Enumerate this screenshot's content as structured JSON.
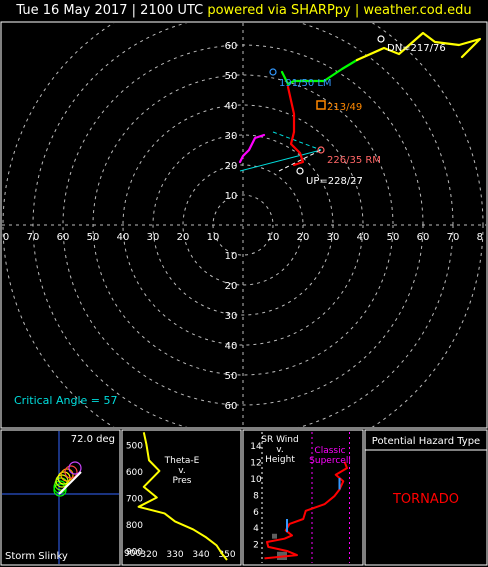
{
  "header": {
    "date_text": "Tue 16 May 2017 | 2100 UTC",
    "credit_text": "powered via SHARPpy | weather.cod.edu"
  },
  "chart_data": [
    {
      "type": "line",
      "panel": "hodograph",
      "ring_labels_up": [
        "10",
        "20",
        "30",
        "40",
        "50",
        "60"
      ],
      "ring_labels_down": [
        "10",
        "20",
        "30",
        "40",
        "50",
        "60"
      ],
      "x_labels_left": [
        "0",
        "70",
        "60",
        "50",
        "40",
        "30",
        "20",
        "10"
      ],
      "x_labels_right": [
        "10",
        "20",
        "30",
        "40",
        "50",
        "60",
        "70",
        "8"
      ],
      "series": [
        {
          "color": "#ff00ff",
          "points": [
            [
              7,
              30
            ],
            [
              4,
              29
            ],
            [
              2,
              25
            ],
            [
              0,
              23
            ],
            [
              -1,
              21
            ]
          ]
        },
        {
          "color": "#ff0000",
          "points": [
            [
              17,
              31
            ],
            [
              16,
              27
            ],
            [
              19,
              24
            ],
            [
              20,
              21
            ],
            [
              17,
              20
            ]
          ]
        },
        {
          "color": "#ff0000",
          "points": [
            [
              15,
              46
            ],
            [
              17,
              37
            ],
            [
              17,
              31
            ]
          ]
        },
        {
          "color": "#00ff00",
          "points": [
            [
              13,
              51
            ],
            [
              15,
              47
            ],
            [
              17,
              48
            ],
            [
              27,
              48
            ],
            [
              33,
              52
            ],
            [
              38,
              55
            ]
          ]
        },
        {
          "color": "#ffff00",
          "points": [
            [
              38,
              55
            ],
            [
              47,
              59
            ],
            [
              52,
              57
            ],
            [
              60,
              64
            ],
            [
              64,
              61
            ],
            [
              72,
              60
            ],
            [
              79,
              62
            ],
            [
              73,
              56
            ]
          ]
        }
      ],
      "lines": [
        {
          "color": "#00dddd",
          "from": [
            -1,
            18
          ],
          "to": [
            26,
            25
          ]
        },
        {
          "color": "#00dddd",
          "from": [
            10,
            31
          ],
          "to": [
            26,
            25
          ],
          "dashed": true
        },
        {
          "color": "#ffffff",
          "from": [
            12,
            18
          ],
          "to": [
            26,
            25
          ],
          "dashed": true
        }
      ],
      "markers": [
        {
          "label": "DN=217/76",
          "color": "#ffffff",
          "x": 46,
          "y": 62,
          "shape": "circle"
        },
        {
          "label": "191/50 LM",
          "color": "#3399ff",
          "x": 10,
          "y": 51,
          "shape": "circle"
        },
        {
          "label": "213/49",
          "color": "#ff8800",
          "x": 26,
          "y": 40,
          "shape": "square"
        },
        {
          "label": "226/35 RM",
          "color": "#ff6666",
          "x": 26,
          "y": 25,
          "shape": "circle"
        },
        {
          "label": "UP=228/27",
          "color": "#ffffff",
          "x": 19,
          "y": 18,
          "shape": "circle"
        }
      ],
      "annotation": "Critical Angle = 57"
    },
    {
      "type": "line",
      "panel": "storm-slinky",
      "title": "Storm Slinky",
      "angle_label": "72.0 deg",
      "rings": [
        {
          "cx": 16,
          "cy": -26,
          "r": 6,
          "color": "#cc44ff"
        },
        {
          "cx": 12,
          "cy": -22,
          "r": 6,
          "color": "#ff4444"
        },
        {
          "cx": 8,
          "cy": -19,
          "r": 6,
          "color": "#ffaa00"
        },
        {
          "cx": 5,
          "cy": -16,
          "r": 6,
          "color": "#ffff00"
        },
        {
          "cx": 3,
          "cy": -13,
          "r": 6,
          "color": "#ccff00"
        },
        {
          "cx": 2,
          "cy": -10,
          "r": 6,
          "color": "#66ff00"
        },
        {
          "cx": 1,
          "cy": -7,
          "r": 6,
          "color": "#00ff00"
        },
        {
          "cx": 1,
          "cy": -4,
          "r": 6,
          "color": "#00ff00"
        }
      ],
      "vector": {
        "from": [
          0,
          0
        ],
        "to": [
          22,
          -22
        ]
      }
    },
    {
      "type": "line",
      "panel": "theta-e",
      "title_lines": [
        "Theta-E",
        "v.",
        "Pres"
      ],
      "y_ticks": [
        "500",
        "600",
        "700",
        "800",
        "900"
      ],
      "x_ticks": [
        "320",
        "330",
        "340",
        "350"
      ],
      "xlim": [
        310,
        355
      ],
      "ylim": [
        450,
        950
      ],
      "values": [
        [
          318,
          455
        ],
        [
          319,
          500
        ],
        [
          320,
          560
        ],
        [
          324,
          600
        ],
        [
          318,
          660
        ],
        [
          323,
          700
        ],
        [
          316,
          735
        ],
        [
          326,
          760
        ],
        [
          330,
          790
        ],
        [
          337,
          820
        ],
        [
          342,
          850
        ],
        [
          346,
          880
        ],
        [
          348,
          910
        ],
        [
          350,
          935
        ]
      ]
    },
    {
      "type": "line",
      "panel": "sr-wind",
      "title_lines": [
        "SR Wind",
        "v.",
        "Height"
      ],
      "supercell_label": [
        "Classic",
        "Supercell"
      ],
      "y_ticks": [
        "14",
        "12",
        "10",
        "8",
        "6",
        "4",
        "2"
      ],
      "xlim": [
        0,
        80
      ],
      "ylim": [
        0,
        15
      ],
      "values": [
        [
          2,
          0.2
        ],
        [
          28,
          0.6
        ],
        [
          20,
          1.1
        ],
        [
          5,
          1.6
        ],
        [
          4,
          2.2
        ],
        [
          18,
          2.6
        ],
        [
          24,
          3.0
        ],
        [
          19,
          3.6
        ],
        [
          22,
          4.4
        ],
        [
          33,
          5.0
        ],
        [
          35,
          6.0
        ],
        [
          50,
          6.8
        ],
        [
          58,
          7.8
        ],
        [
          62,
          8.6
        ],
        [
          65,
          9.6
        ],
        [
          59,
          10.4
        ],
        [
          68,
          11.2
        ],
        [
          66,
          12.0
        ]
      ]
    }
  ],
  "hazard": {
    "title": "Potential Hazard Type",
    "value": "TORNADO"
  }
}
